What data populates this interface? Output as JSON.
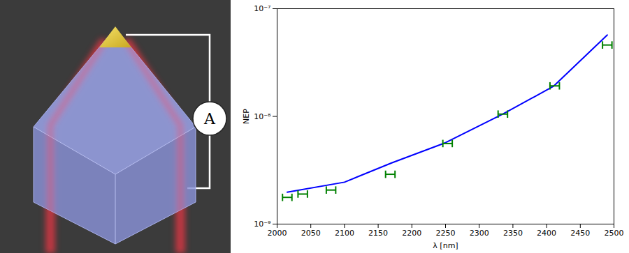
{
  "diagram": {
    "meter": "A"
  },
  "chart_data": {
    "type": "line",
    "xlabel": "λ [nm]",
    "ylabel": "NEP",
    "log": "y",
    "grid": false,
    "xlim": [
      2000,
      2500
    ],
    "xticks": [
      2000,
      2050,
      2100,
      2150,
      2200,
      2250,
      2300,
      2350,
      2400,
      2450,
      2500
    ],
    "ylim": [
      1e-09,
      1e-07
    ],
    "yticks": [
      {
        "value": 1e-09,
        "label": "10⁻⁹"
      },
      {
        "value": 1e-08,
        "label": "10⁻⁸"
      },
      {
        "value": 1e-07,
        "label": "10⁻⁷"
      }
    ],
    "series": [
      {
        "type": "line",
        "color": "#0000ff",
        "x": [
          2015,
          2100,
          2170,
          2250,
          2335,
          2410,
          2490
        ],
        "values": [
          1.98e-09,
          2.45e-09,
          3.7e-09,
          5.7e-09,
          1.05e-08,
          1.9e-08,
          5.7e-08
        ]
      },
      {
        "type": "scatter",
        "color": "#008000",
        "x": [
          2015,
          2038,
          2080,
          2168,
          2253,
          2335,
          2412,
          2490
        ],
        "values": [
          1.77e-09,
          1.9e-09,
          2.07e-09,
          2.9e-09,
          5.6e-09,
          1.05e-08,
          1.92e-08,
          4.6e-08
        ],
        "x_error": [
          7,
          7,
          7,
          7,
          7,
          7,
          7,
          7
        ]
      }
    ]
  }
}
